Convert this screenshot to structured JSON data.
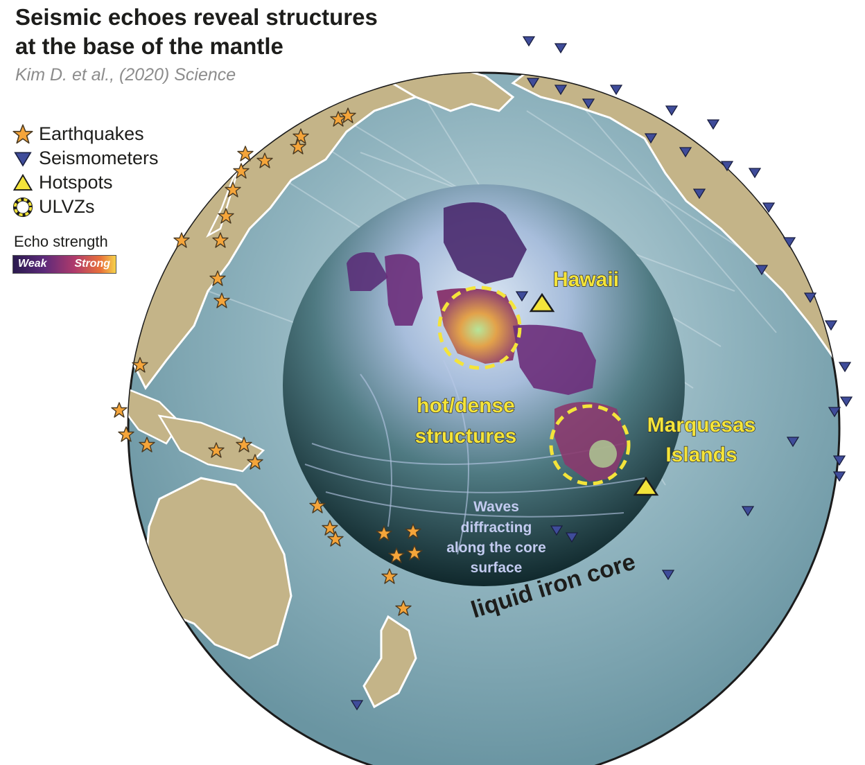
{
  "title_line1": "Seismic echoes reveal structures",
  "title_line2": "at the base of the mantle",
  "citation": "Kim D. et al., (2020) Science",
  "legend": [
    {
      "symbol": "star-icon",
      "label": "Earthquakes",
      "color": "#f5a53a"
    },
    {
      "symbol": "down-triangle-icon",
      "label": "Seismometers",
      "color": "#3f4c9a"
    },
    {
      "symbol": "up-triangle-icon",
      "label": "Hotspots",
      "color": "#f4e43a"
    },
    {
      "symbol": "dashed-circle-icon",
      "label": "ULVZs",
      "color": "#f4e43a"
    }
  ],
  "echo_strength": {
    "label": "Echo strength",
    "weak": "Weak",
    "strong": "Strong"
  },
  "labels": {
    "hawaii": "Hawaii",
    "hot_line1": "hot/dense",
    "hot_line2": "structures",
    "marq_line1": "Marquesas",
    "marq_line2": "Islands",
    "waves_line1": "Waves",
    "waves_line2": "diffracting",
    "waves_line3": "along the core",
    "waves_line4": "surface",
    "core": "liquid iron core"
  },
  "colors": {
    "ocean": "#7fa6b3",
    "land": "#c4b488",
    "core": "#3f6b72",
    "label_yellow": "#f4e43a"
  }
}
